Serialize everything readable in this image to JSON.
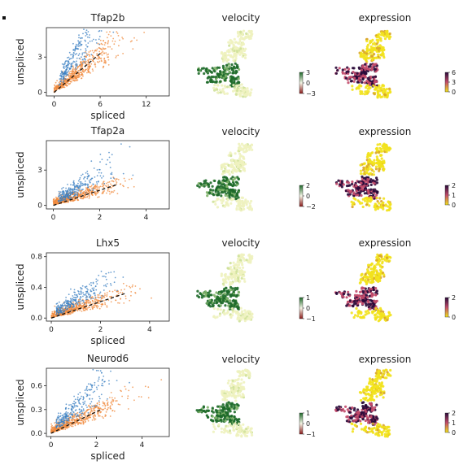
{
  "colors": {
    "unspliced": "#3a7fc1",
    "spliced": "#f08a3c",
    "fit_line": "#111111",
    "velocity_pos": "#1e6a2a",
    "velocity_neg": "#8b1a1a",
    "expr_high": "#2a0a3a",
    "expr_mid": "#c24a6a",
    "expr_low": "#f2e21c"
  },
  "chart_data": [
    {
      "type": "scatter",
      "title": "Tfap2b",
      "xlabel": "spliced",
      "ylabel": "unspliced",
      "xlim": [
        -1,
        15
      ],
      "ylim": [
        -0.3,
        5.5
      ],
      "xticks": [
        0,
        6,
        12
      ],
      "yticks": [
        0,
        3
      ],
      "fit": {
        "x": [
          0,
          6
        ],
        "y": [
          0,
          3.3
        ]
      },
      "velocity_panel": {
        "title": "velocity",
        "ticks": [
          "3",
          "0",
          "−3"
        ]
      },
      "expression_panel": {
        "title": "expression",
        "ticks": [
          "6",
          "3",
          "0"
        ]
      }
    },
    {
      "type": "scatter",
      "title": "Tfap2a",
      "xlabel": "",
      "ylabel": "unspliced",
      "xlim": [
        -0.3,
        5
      ],
      "ylim": [
        -0.3,
        5.5
      ],
      "xticks": [
        0,
        2,
        4
      ],
      "yticks": [
        0,
        3
      ],
      "fit": {
        "x": [
          0,
          2.8
        ],
        "y": [
          0,
          1.8
        ]
      },
      "velocity_panel": {
        "title": "velocity",
        "ticks": [
          "2",
          "0",
          "−2"
        ]
      },
      "expression_panel": {
        "title": "expression",
        "ticks": [
          "2",
          "1",
          "0"
        ]
      }
    },
    {
      "type": "scatter",
      "title": "Lhx5",
      "xlabel": "spliced",
      "ylabel": "unspliced",
      "xlim": [
        -0.2,
        4.8
      ],
      "ylim": [
        -0.04,
        0.85
      ],
      "xticks": [
        0,
        2,
        4
      ],
      "yticks": [
        "0.0",
        "0.4",
        "0.8"
      ],
      "fit": {
        "x": [
          0,
          3
        ],
        "y": [
          0,
          0.32
        ]
      },
      "velocity_panel": {
        "title": "velocity",
        "ticks": [
          "1",
          "0",
          "−1"
        ]
      },
      "expression_panel": {
        "title": "expression",
        "ticks": [
          "2",
          "0"
        ]
      }
    },
    {
      "type": "scatter",
      "title": "Neurod6",
      "xlabel": "spliced",
      "ylabel": "unspliced",
      "xlim": [
        -0.2,
        5.2
      ],
      "ylim": [
        -0.04,
        0.82
      ],
      "xticks": [
        0,
        2,
        4
      ],
      "yticks": [
        "0.0",
        "0.3",
        "0.6"
      ],
      "fit": {
        "x": [
          0,
          2.2
        ],
        "y": [
          0,
          0.3
        ]
      },
      "velocity_panel": {
        "title": "velocity",
        "ticks": [
          "1",
          "0",
          "−1"
        ]
      },
      "expression_panel": {
        "title": "expression",
        "ticks": [
          "2",
          "1",
          "0"
        ]
      }
    }
  ]
}
